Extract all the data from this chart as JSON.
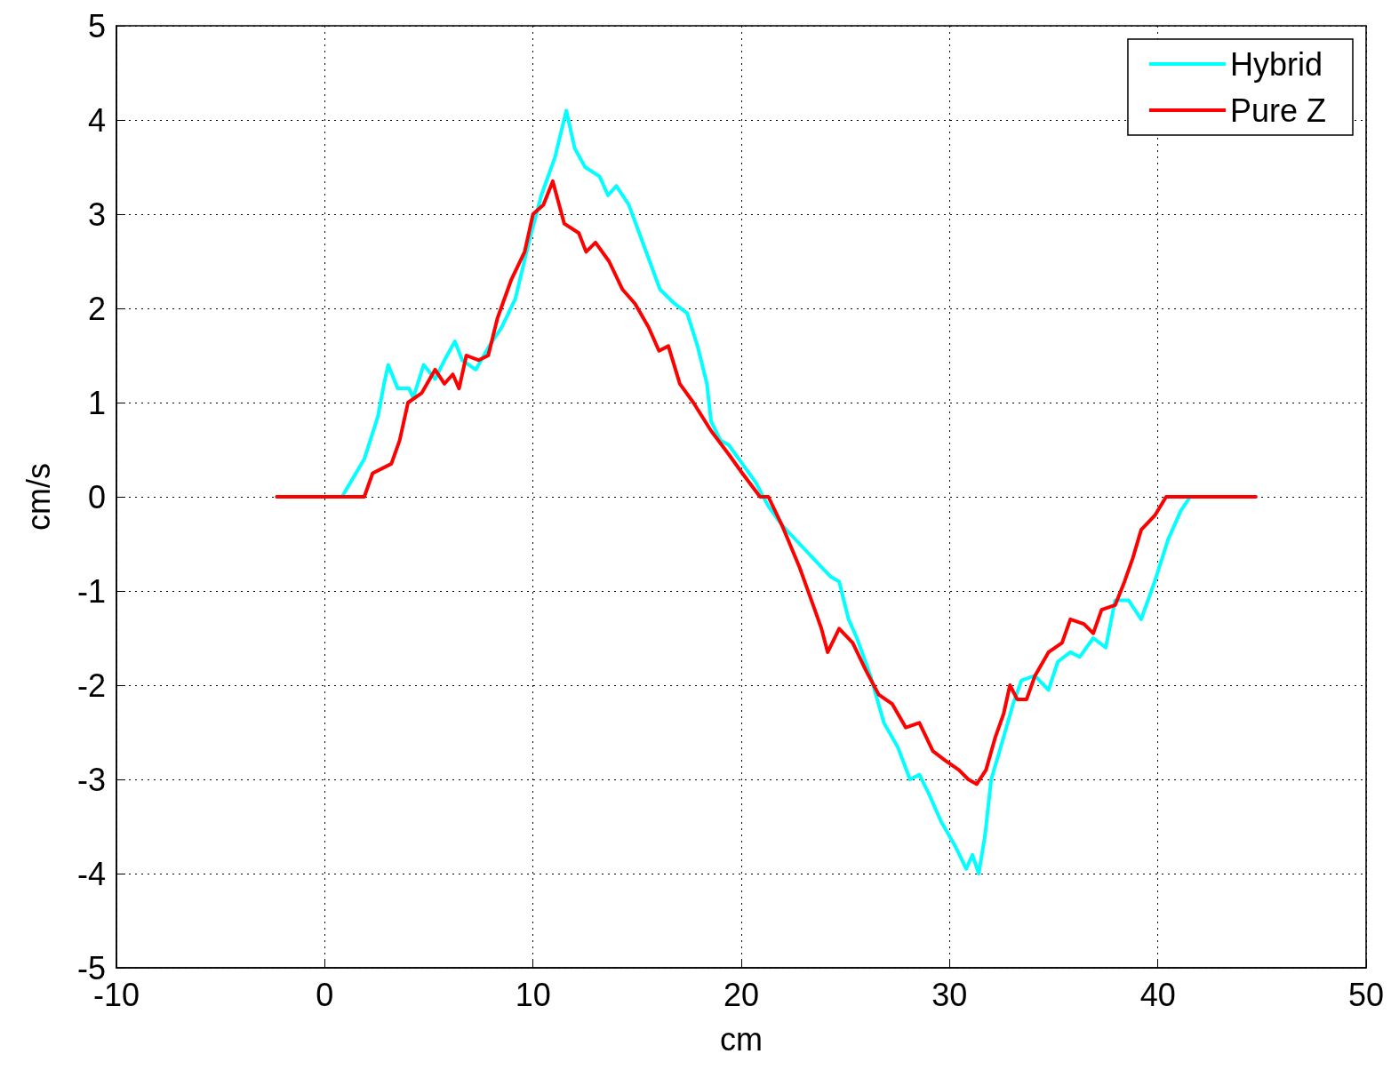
{
  "chart_data": {
    "type": "line",
    "xlabel": "cm",
    "ylabel": "cm/s",
    "xlim": [
      -10,
      50
    ],
    "xticks": [
      -10,
      0,
      10,
      20,
      30,
      40,
      50
    ],
    "ylim": [
      -5,
      5
    ],
    "yticks": [
      -5,
      -4,
      -3,
      -2,
      -1,
      0,
      1,
      2,
      3,
      4,
      5
    ],
    "grid": true,
    "legend": "top right",
    "marker": "none",
    "line_style": "solid",
    "series": [
      {
        "name": "Hybrid",
        "color": "#00ffff",
        "x": [
          -2.3,
          0.83,
          1.9,
          2.55,
          2.85,
          3.05,
          3.5,
          4.05,
          4.25,
          4.75,
          5.3,
          5.75,
          6.25,
          6.6,
          7.25,
          7.9,
          8.5,
          9.15,
          9.8,
          10.4,
          11.05,
          11.6,
          12.0,
          12.5,
          13.2,
          13.6,
          14.0,
          14.6,
          15.1,
          15.6,
          16.1,
          16.8,
          17.4,
          17.9,
          18.35,
          18.55,
          19.0,
          19.4,
          20.05,
          20.7,
          21.3,
          21.95,
          22.8,
          23.65,
          24.3,
          24.7,
          25.15,
          25.55,
          26.2,
          26.85,
          27.5,
          28.1,
          28.55,
          29.0,
          29.6,
          30.25,
          30.8,
          31.1,
          31.4,
          31.7,
          32.0,
          32.4,
          33.05,
          33.45,
          34.1,
          34.75,
          35.2,
          35.8,
          36.25,
          36.9,
          37.5,
          37.95,
          38.6,
          39.2,
          39.85,
          40.5,
          41.1,
          41.55,
          44.7
        ],
        "values": [
          0,
          0,
          0.4,
          0.85,
          1.2,
          1.4,
          1.15,
          1.15,
          1.05,
          1.4,
          1.25,
          1.45,
          1.65,
          1.45,
          1.35,
          1.6,
          1.8,
          2.1,
          2.7,
          3.2,
          3.6,
          4.1,
          3.7,
          3.5,
          3.4,
          3.2,
          3.3,
          3.1,
          2.8,
          2.5,
          2.2,
          2.05,
          1.95,
          1.6,
          1.2,
          0.8,
          0.6,
          0.55,
          0.35,
          0.15,
          -0.1,
          -0.3,
          -0.5,
          -0.7,
          -0.85,
          -0.9,
          -1.3,
          -1.5,
          -1.9,
          -2.4,
          -2.65,
          -3.0,
          -2.95,
          -3.15,
          -3.45,
          -3.7,
          -3.95,
          -3.8,
          -4.0,
          -3.6,
          -3.0,
          -2.7,
          -2.2,
          -1.95,
          -1.9,
          -2.05,
          -1.75,
          -1.65,
          -1.7,
          -1.5,
          -1.6,
          -1.1,
          -1.1,
          -1.3,
          -0.9,
          -0.45,
          -0.15,
          0,
          0
        ]
      },
      {
        "name": "Pure Z",
        "color": "#ff0000",
        "x": [
          -2.3,
          1.9,
          2.3,
          3.2,
          3.6,
          4.0,
          4.65,
          5.3,
          5.75,
          6.15,
          6.45,
          6.8,
          7.4,
          7.85,
          8.3,
          8.95,
          9.6,
          10.0,
          10.5,
          10.95,
          11.5,
          12.2,
          12.55,
          13.0,
          13.65,
          14.3,
          14.9,
          15.55,
          16.05,
          16.5,
          17.05,
          17.7,
          18.55,
          19.4,
          20.05,
          20.9,
          21.3,
          21.95,
          22.8,
          23.45,
          23.85,
          24.15,
          24.7,
          25.35,
          26.0,
          26.6,
          27.25,
          27.9,
          28.55,
          29.2,
          29.8,
          30.45,
          30.9,
          31.3,
          31.75,
          32.2,
          32.6,
          32.9,
          33.25,
          33.7,
          34.1,
          34.75,
          35.4,
          35.8,
          36.45,
          36.9,
          37.3,
          37.95,
          38.4,
          38.8,
          39.2,
          39.85,
          40.4,
          44.7
        ],
        "values": [
          0,
          0,
          0.25,
          0.35,
          0.6,
          1.0,
          1.1,
          1.35,
          1.2,
          1.3,
          1.15,
          1.5,
          1.45,
          1.5,
          1.9,
          2.3,
          2.6,
          3.0,
          3.1,
          3.35,
          2.9,
          2.8,
          2.6,
          2.7,
          2.5,
          2.2,
          2.05,
          1.8,
          1.55,
          1.6,
          1.2,
          1.0,
          0.7,
          0.45,
          0.25,
          0.0,
          0.0,
          -0.3,
          -0.75,
          -1.15,
          -1.4,
          -1.65,
          -1.4,
          -1.55,
          -1.85,
          -2.1,
          -2.2,
          -2.45,
          -2.4,
          -2.7,
          -2.8,
          -2.9,
          -3.0,
          -3.05,
          -2.9,
          -2.55,
          -2.3,
          -2.0,
          -2.15,
          -2.15,
          -1.9,
          -1.65,
          -1.55,
          -1.3,
          -1.35,
          -1.45,
          -1.2,
          -1.15,
          -0.9,
          -0.65,
          -0.35,
          -0.2,
          0,
          0
        ]
      }
    ]
  }
}
